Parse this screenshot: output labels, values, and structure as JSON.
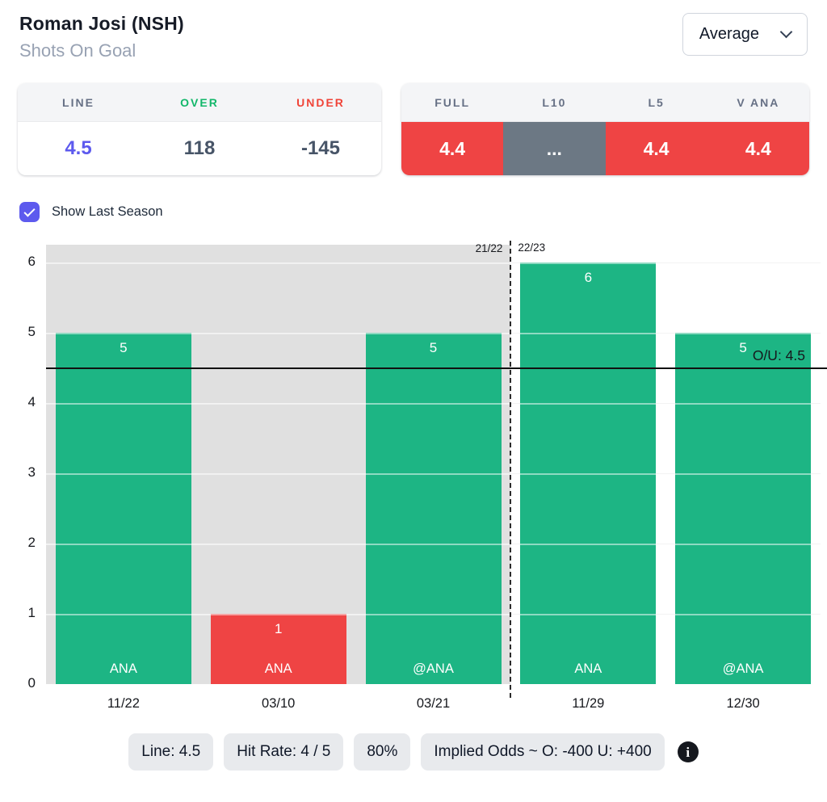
{
  "colors": {
    "green": "#1db584",
    "red": "#ef4444",
    "slate": "#6c7884",
    "accent": "#5d5aee",
    "dark_value": "#475467",
    "last_season_bg": "#e0e0e0"
  },
  "header": {
    "player_name": "Roman Josi (NSH)",
    "stat_label": "Shots On Goal",
    "view_dropdown_value": "Average"
  },
  "odds_card": {
    "columns": [
      {
        "label": "LINE",
        "value": "4.5",
        "label_color": "#667085",
        "value_color": "#5d5aee"
      },
      {
        "label": "OVER",
        "value": "118",
        "label_color": "#12b76a",
        "value_color": "#475467"
      },
      {
        "label": "UNDER",
        "value": "-145",
        "label_color": "#f04438",
        "value_color": "#475467"
      }
    ]
  },
  "splits_card": {
    "columns": [
      {
        "label": "FULL",
        "value": "4.4",
        "bg": "#ef4444"
      },
      {
        "label": "L10",
        "value": "...",
        "bg": "#6c7884"
      },
      {
        "label": "L5",
        "value": "4.4",
        "bg": "#ef4444"
      },
      {
        "label": "V ANA",
        "value": "4.4",
        "bg": "#ef4444"
      }
    ]
  },
  "toggle": {
    "label": "Show Last Season",
    "checked": true
  },
  "chart_data": {
    "type": "bar",
    "categories": [
      "11/22",
      "03/10",
      "03/21",
      "11/29",
      "12/30"
    ],
    "values": [
      5,
      1,
      5,
      6,
      5
    ],
    "bar_colors": [
      "#1db584",
      "#ef4444",
      "#1db584",
      "#1db584",
      "#1db584"
    ],
    "opponents": [
      "ANA",
      "ANA",
      "@ANA",
      "ANA",
      "@ANA"
    ],
    "yticks": [
      0,
      1,
      2,
      3,
      4,
      5,
      6
    ],
    "ylim": [
      0,
      6
    ],
    "grid": true,
    "over_under_line": 4.5,
    "over_under_label": "O/U: 4.5",
    "seasons": [
      {
        "label": "21/22",
        "games": 3,
        "shaded": true
      },
      {
        "label": "22/23",
        "games": 2,
        "shaded": false
      }
    ]
  },
  "footer": {
    "badges": [
      {
        "text": "Line: 4.5"
      },
      {
        "text": "Hit Rate: 4 / 5"
      },
      {
        "text": "80%"
      },
      {
        "text": "Implied Odds ~ O: -400 U: +400"
      }
    ],
    "info_icon": "i"
  }
}
